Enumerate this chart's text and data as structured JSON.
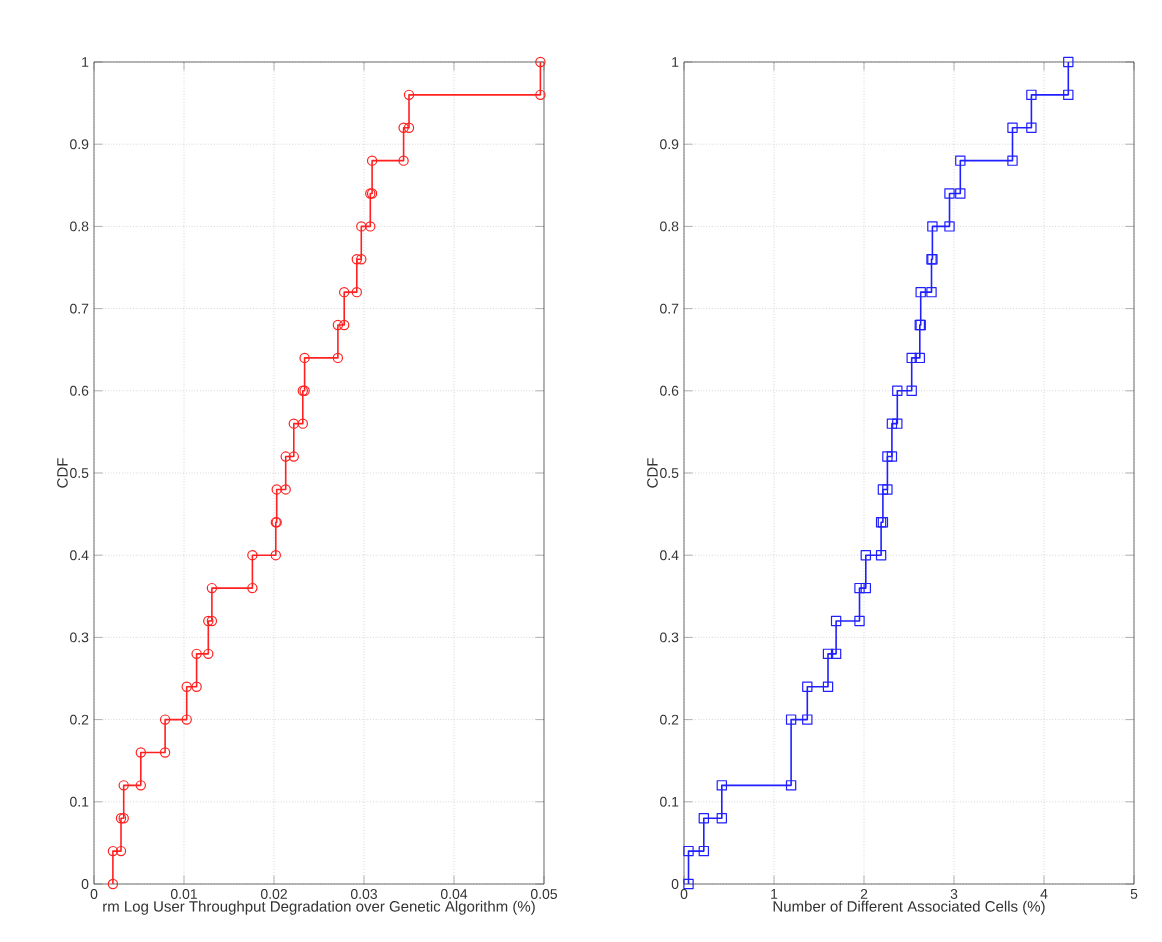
{
  "chart_data": [
    {
      "type": "line",
      "xlabel": "rm Log User Throughput Degradation over Genetic Algorithm (%)",
      "ylabel": "CDF",
      "xlim": [
        0,
        0.05
      ],
      "ylim": [
        0,
        1
      ],
      "xticks": [
        0,
        0.01,
        0.02,
        0.03,
        0.04,
        0.05
      ],
      "yticks": [
        0,
        0.1,
        0.2,
        0.3,
        0.4,
        0.5,
        0.6,
        0.7,
        0.8,
        0.9,
        1
      ],
      "grid": true,
      "marker": "circle",
      "line_style": "solid",
      "series": [
        {
          "color": "#ff2020",
          "x": [
            0.0021,
            0.0021,
            0.003,
            0.003,
            0.0033,
            0.0033,
            0.0052,
            0.0052,
            0.0079,
            0.0079,
            0.0103,
            0.0103,
            0.0114,
            0.0114,
            0.0127,
            0.0127,
            0.0131,
            0.0131,
            0.0176,
            0.0176,
            0.0202,
            0.0202,
            0.0203,
            0.0203,
            0.0213,
            0.0213,
            0.0222,
            0.0222,
            0.0232,
            0.0232,
            0.0234,
            0.0234,
            0.0271,
            0.0271,
            0.0278,
            0.0278,
            0.0292,
            0.0292,
            0.0297,
            0.0297,
            0.0307,
            0.0307,
            0.0309,
            0.0309,
            0.0344,
            0.0344,
            0.035,
            0.035,
            0.0496,
            0.0496
          ],
          "values": [
            0,
            0.04,
            0.04,
            0.08,
            0.08,
            0.12,
            0.12,
            0.16,
            0.16,
            0.2,
            0.2,
            0.24,
            0.24,
            0.28,
            0.28,
            0.32,
            0.32,
            0.36,
            0.36,
            0.4,
            0.4,
            0.44,
            0.44,
            0.48,
            0.48,
            0.52,
            0.52,
            0.56,
            0.56,
            0.6,
            0.6,
            0.64,
            0.64,
            0.68,
            0.68,
            0.72,
            0.72,
            0.76,
            0.76,
            0.8,
            0.8,
            0.84,
            0.84,
            0.88,
            0.88,
            0.92,
            0.92,
            0.96,
            0.96,
            1
          ]
        }
      ]
    },
    {
      "type": "line",
      "xlabel": "Number of Different Associated Cells (%)",
      "ylabel": "CDF",
      "xlim": [
        0,
        5
      ],
      "ylim": [
        0,
        1
      ],
      "xticks": [
        0,
        1,
        2,
        3,
        4,
        5
      ],
      "yticks": [
        0,
        0.1,
        0.2,
        0.3,
        0.4,
        0.5,
        0.6,
        0.7,
        0.8,
        0.9,
        1
      ],
      "grid": true,
      "marker": "square",
      "line_style": "solid",
      "series": [
        {
          "color": "#2020ff",
          "x": [
            0.05,
            0.05,
            0.22,
            0.22,
            0.42,
            0.42,
            1.19,
            1.19,
            1.37,
            1.37,
            1.6,
            1.6,
            1.69,
            1.69,
            1.95,
            1.95,
            2.02,
            2.02,
            2.19,
            2.19,
            2.21,
            2.21,
            2.26,
            2.26,
            2.31,
            2.31,
            2.37,
            2.37,
            2.53,
            2.53,
            2.62,
            2.62,
            2.63,
            2.63,
            2.75,
            2.75,
            2.76,
            2.76,
            2.95,
            2.95,
            3.07,
            3.07,
            3.65,
            3.65,
            3.86,
            3.86,
            4.27,
            4.27
          ],
          "values": [
            0,
            0.04,
            0.04,
            0.08,
            0.08,
            0.12,
            0.12,
            0.2,
            0.2,
            0.24,
            0.24,
            0.28,
            0.28,
            0.32,
            0.32,
            0.36,
            0.36,
            0.4,
            0.4,
            0.44,
            0.44,
            0.48,
            0.48,
            0.52,
            0.52,
            0.56,
            0.56,
            0.6,
            0.6,
            0.64,
            0.64,
            0.68,
            0.68,
            0.72,
            0.72,
            0.76,
            0.76,
            0.8,
            0.8,
            0.84,
            0.84,
            0.88,
            0.88,
            0.92,
            0.92,
            0.96,
            0.96,
            1
          ]
        }
      ]
    }
  ]
}
